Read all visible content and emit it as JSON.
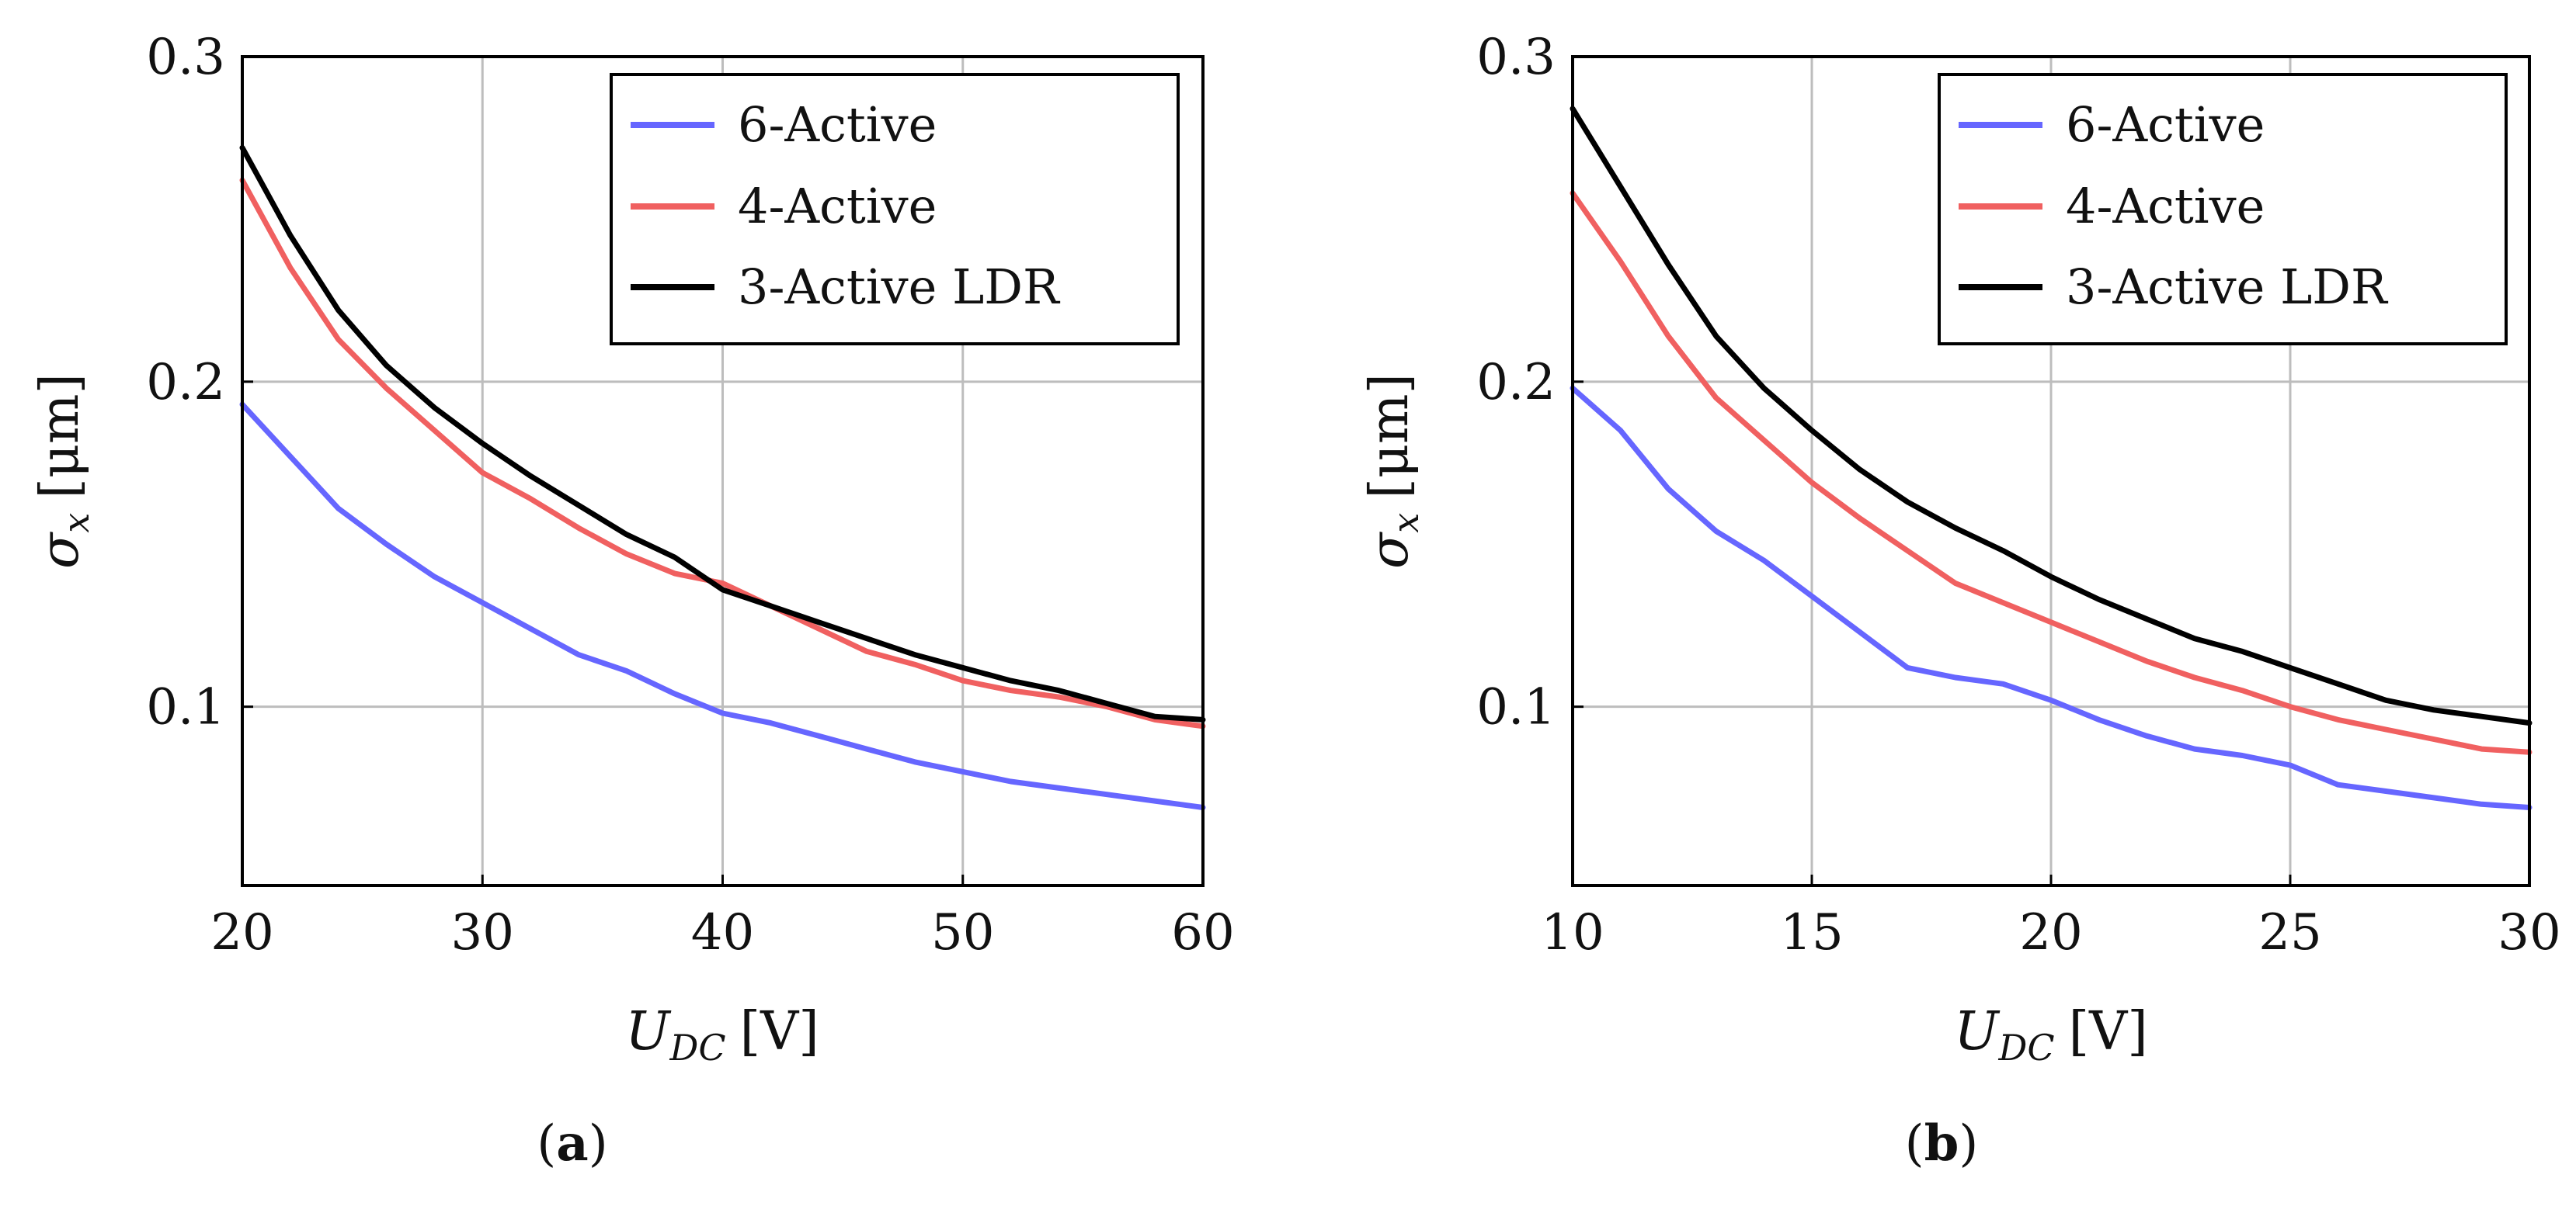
{
  "chart_data": [
    {
      "type": "line",
      "caption_letter": "a",
      "xlabel_main": "U",
      "xlabel_sub": "DC",
      "xlabel_unit": "[V]",
      "ylabel_main": "σ",
      "ylabel_sub": "x",
      "ylabel_unit": "[μm]",
      "xlim": [
        20,
        60
      ],
      "ylim": [
        0.045,
        0.3
      ],
      "xticks": [
        "20",
        "30",
        "40",
        "50",
        "60"
      ],
      "yticks": [
        "0.1",
        "0.2",
        "0.3"
      ],
      "grid": true,
      "legend_position": "top-right",
      "series": [
        {
          "name": "6-Active",
          "color": "#6666ff",
          "x": [
            20,
            22,
            24,
            26,
            28,
            30,
            32,
            34,
            36,
            38,
            40,
            42,
            44,
            46,
            48,
            50,
            52,
            54,
            56,
            58,
            60
          ],
          "y": [
            0.193,
            0.177,
            0.161,
            0.15,
            0.14,
            0.132,
            0.124,
            0.116,
            0.111,
            0.104,
            0.098,
            0.095,
            0.091,
            0.087,
            0.083,
            0.08,
            0.077,
            0.075,
            0.073,
            0.071,
            0.069
          ]
        },
        {
          "name": "4-Active",
          "color": "#f06060",
          "x": [
            20,
            22,
            24,
            26,
            28,
            30,
            32,
            34,
            36,
            38,
            40,
            42,
            44,
            46,
            48,
            50,
            52,
            54,
            56,
            58,
            60
          ],
          "y": [
            0.262,
            0.235,
            0.213,
            0.198,
            0.185,
            0.172,
            0.164,
            0.155,
            0.147,
            0.141,
            0.138,
            0.131,
            0.124,
            0.117,
            0.113,
            0.108,
            0.105,
            0.103,
            0.1,
            0.096,
            0.094
          ]
        },
        {
          "name": "3-Active LDR",
          "color": "#000000",
          "x": [
            20,
            22,
            24,
            26,
            28,
            30,
            32,
            34,
            36,
            38,
            40,
            42,
            44,
            46,
            48,
            50,
            52,
            54,
            56,
            58,
            60
          ],
          "y": [
            0.272,
            0.245,
            0.222,
            0.205,
            0.192,
            0.181,
            0.171,
            0.162,
            0.153,
            0.146,
            0.136,
            0.131,
            0.126,
            0.121,
            0.116,
            0.112,
            0.108,
            0.105,
            0.101,
            0.097,
            0.096
          ]
        }
      ]
    },
    {
      "type": "line",
      "caption_letter": "b",
      "xlabel_main": "U",
      "xlabel_sub": "DC",
      "xlabel_unit": "[V]",
      "ylabel_main": "σ",
      "ylabel_sub": "x",
      "ylabel_unit": "[μm]",
      "xlim": [
        10,
        30
      ],
      "ylim": [
        0.045,
        0.3
      ],
      "xticks": [
        "10",
        "15",
        "20",
        "25",
        "30"
      ],
      "yticks": [
        "0.1",
        "0.2",
        "0.3"
      ],
      "grid": true,
      "legend_position": "top-right",
      "series": [
        {
          "name": "6-Active",
          "color": "#6666ff",
          "x": [
            10,
            11,
            12,
            13,
            14,
            15,
            16,
            17,
            18,
            19,
            20,
            21,
            22,
            23,
            24,
            25,
            26,
            27,
            28,
            29,
            30
          ],
          "y": [
            0.198,
            0.185,
            0.167,
            0.154,
            0.145,
            0.134,
            0.123,
            0.112,
            0.109,
            0.107,
            0.102,
            0.096,
            0.091,
            0.087,
            0.085,
            0.082,
            0.076,
            0.074,
            0.072,
            0.07,
            0.069
          ]
        },
        {
          "name": "4-Active",
          "color": "#f06060",
          "x": [
            10,
            11,
            12,
            13,
            14,
            15,
            16,
            17,
            18,
            19,
            20,
            21,
            22,
            23,
            24,
            25,
            26,
            27,
            28,
            29,
            30
          ],
          "y": [
            0.258,
            0.237,
            0.214,
            0.195,
            0.182,
            0.169,
            0.158,
            0.148,
            0.138,
            0.132,
            0.126,
            0.12,
            0.114,
            0.109,
            0.105,
            0.1,
            0.096,
            0.093,
            0.09,
            0.087,
            0.086
          ]
        },
        {
          "name": "3-Active LDR",
          "color": "#000000",
          "x": [
            10,
            11,
            12,
            13,
            14,
            15,
            16,
            17,
            18,
            19,
            20,
            21,
            22,
            23,
            24,
            25,
            26,
            27,
            28,
            29,
            30
          ],
          "y": [
            0.284,
            0.26,
            0.236,
            0.214,
            0.198,
            0.185,
            0.173,
            0.163,
            0.155,
            0.148,
            0.14,
            0.133,
            0.127,
            0.121,
            0.117,
            0.112,
            0.107,
            0.102,
            0.099,
            0.097,
            0.095
          ]
        }
      ]
    }
  ]
}
